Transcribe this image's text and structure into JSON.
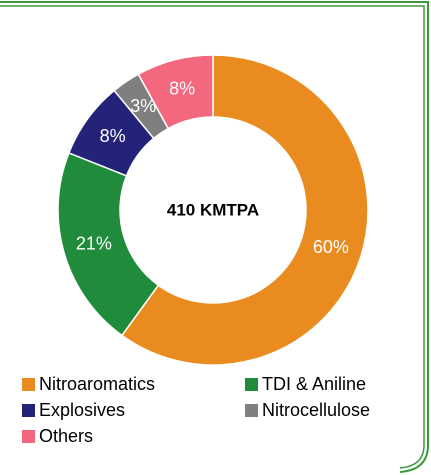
{
  "chart_data": {
    "type": "donut",
    "center_label": "410 KMTPA",
    "categories": [
      "Nitroaromatics",
      "TDI & Aniline",
      "Explosives",
      "Nitrocellulose",
      "Others"
    ],
    "values": [
      60,
      21,
      8,
      3,
      8
    ],
    "value_labels": [
      "60%",
      "21%",
      "8%",
      "3%",
      "8%"
    ],
    "colors": [
      "#e98b1f",
      "#1f8b3b",
      "#23237a",
      "#7f7f7f",
      "#f4687f"
    ]
  }
}
